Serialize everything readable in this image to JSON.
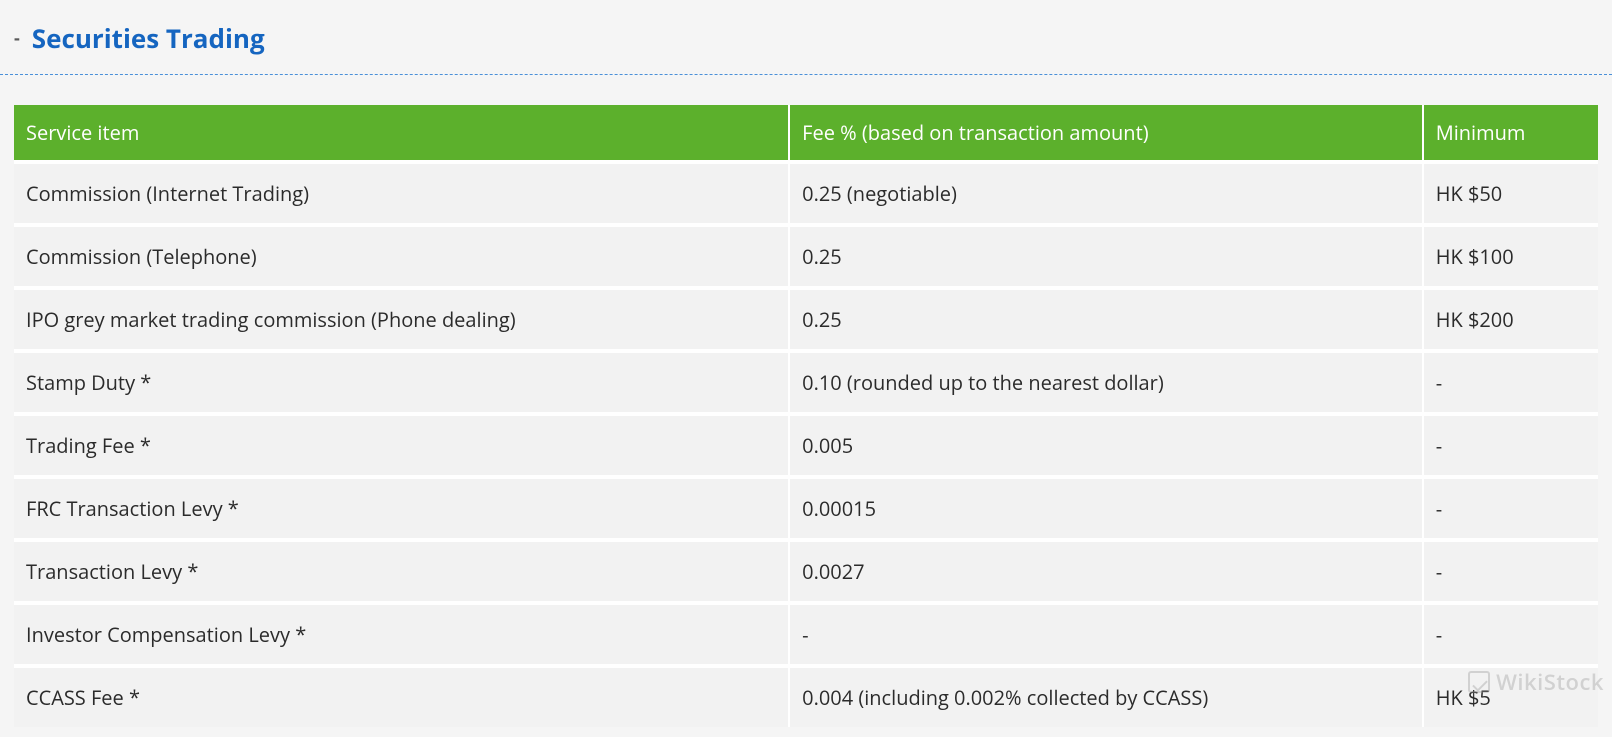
{
  "header": {
    "minus": "-",
    "title": "Securities Trading"
  },
  "table": {
    "header_bg": "#5cb02c",
    "header_text_color": "#ffffff",
    "row_bg": "#f2f2f2",
    "row_text_color": "#2b2b2b",
    "border_color": "#ffffff",
    "title_color": "#1565c0",
    "page_bg": "#f5f5f5",
    "font_size_header": 20,
    "font_size_cell": 20,
    "columns": [
      {
        "label": "Service item",
        "width_pct": 49
      },
      {
        "label": "Fee % (based on transaction amount)",
        "width_pct": 40
      },
      {
        "label": "Minimum",
        "width_pct": 11
      }
    ],
    "rows": [
      {
        "service": "Commission (Internet Trading)",
        "fee": "0.25 (negotiable)",
        "min": "HK $50"
      },
      {
        "service": "Commission (Telephone)",
        "fee": "0.25",
        "min": "HK $100"
      },
      {
        "service": "IPO grey market trading commission (Phone dealing)",
        "fee": "0.25",
        "min": "HK $200"
      },
      {
        "service": "Stamp Duty *",
        "fee": "0.10 (rounded up to the nearest dollar)",
        "min": "-"
      },
      {
        "service": "Trading Fee *",
        "fee": "0.005",
        "min": "-"
      },
      {
        "service": "FRC Transaction Levy *",
        "fee": "0.00015",
        "min": "-"
      },
      {
        "service": "Transaction Levy *",
        "fee": "0.0027",
        "min": "-"
      },
      {
        "service": "Investor Compensation Levy *",
        "fee": "-",
        "min": "-"
      },
      {
        "service": "CCASS Fee *",
        "fee": "0.004 (including 0.002% collected by CCASS)",
        "min": "HK $5"
      }
    ]
  },
  "watermark": {
    "text": "WikiStock"
  }
}
